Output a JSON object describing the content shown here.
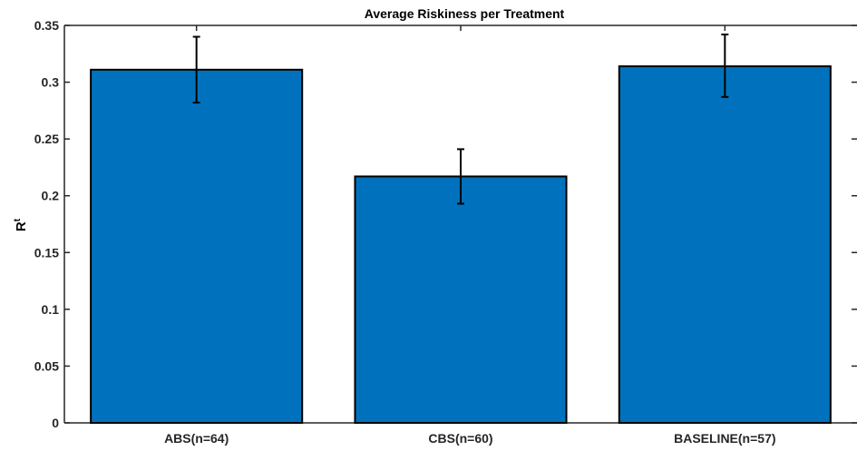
{
  "chart_data": {
    "type": "bar",
    "title": "Average Riskiness per Treatment",
    "ylabel": "R",
    "ylabel_superscript": "t",
    "xlabel": "",
    "categories": [
      "ABS(n=64)",
      "CBS(n=60)",
      "BASELINE(n=57)"
    ],
    "values": [
      0.311,
      0.217,
      0.314
    ],
    "error_low": [
      0.282,
      0.193,
      0.287
    ],
    "error_high": [
      0.34,
      0.241,
      0.342
    ],
    "ylim": [
      0,
      0.35
    ],
    "yticks": [
      0,
      0.05,
      0.1,
      0.15,
      0.2,
      0.25,
      0.3,
      0.35
    ],
    "ytick_labels": [
      "0",
      "0.05",
      "0.1",
      "0.15",
      "0.2",
      "0.25",
      "0.3",
      "0.35"
    ],
    "grid": false,
    "colors": {
      "bar": "#0072BD",
      "bar_edge": "#000000",
      "axis": "#262626",
      "error": "#000000"
    }
  }
}
